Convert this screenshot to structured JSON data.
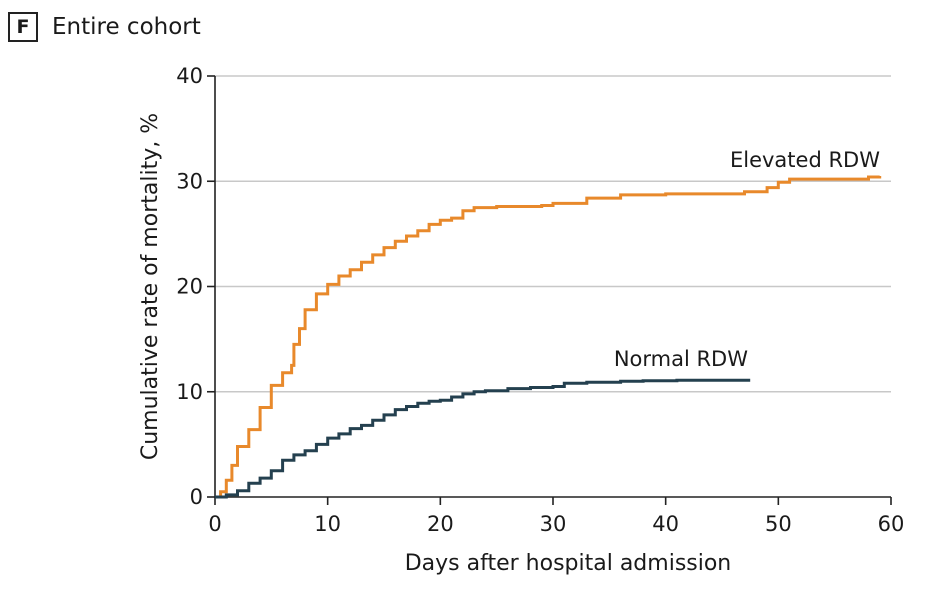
{
  "panel": {
    "letter": "F",
    "title": "Entire cohort"
  },
  "chart_data": {
    "type": "line",
    "title": "Entire cohort",
    "xlabel": "Days after hospital admission",
    "ylabel": "Cumulative rate of mortality, %",
    "xlim": [
      0,
      60
    ],
    "ylim": [
      0,
      40
    ],
    "xticks": [
      0,
      10,
      20,
      30,
      40,
      50,
      60
    ],
    "yticks": [
      0,
      10,
      20,
      30,
      40
    ],
    "grid": "horizontal",
    "step": true,
    "series": [
      {
        "name": "Elevated RDW",
        "color": "#E8892B",
        "points": [
          [
            0,
            0
          ],
          [
            0.5,
            0.5
          ],
          [
            1,
            1.6
          ],
          [
            1.5,
            3
          ],
          [
            2,
            4.8
          ],
          [
            3,
            6.4
          ],
          [
            4,
            8.5
          ],
          [
            5,
            10.6
          ],
          [
            6,
            11.8
          ],
          [
            6.8,
            12.5
          ],
          [
            7,
            14.5
          ],
          [
            7.5,
            16
          ],
          [
            8,
            17.8
          ],
          [
            9,
            19.3
          ],
          [
            10,
            20.2
          ],
          [
            11,
            21
          ],
          [
            12,
            21.6
          ],
          [
            13,
            22.3
          ],
          [
            14,
            23
          ],
          [
            15,
            23.7
          ],
          [
            16,
            24.3
          ],
          [
            17,
            24.8
          ],
          [
            18,
            25.3
          ],
          [
            19,
            25.9
          ],
          [
            20,
            26.3
          ],
          [
            21,
            26.5
          ],
          [
            22,
            27.2
          ],
          [
            23,
            27.5
          ],
          [
            25,
            27.6
          ],
          [
            27,
            27.6
          ],
          [
            29,
            27.7
          ],
          [
            30,
            27.9
          ],
          [
            33,
            28.4
          ],
          [
            36,
            28.7
          ],
          [
            40,
            28.8
          ],
          [
            44,
            28.8
          ],
          [
            47,
            29
          ],
          [
            49,
            29.4
          ],
          [
            50,
            29.9
          ],
          [
            51,
            30.2
          ],
          [
            55,
            30.2
          ],
          [
            58,
            30.4
          ],
          [
            59,
            30.5
          ]
        ]
      },
      {
        "name": "Normal RDW",
        "color": "#24404F",
        "points": [
          [
            0,
            0
          ],
          [
            1,
            0.2
          ],
          [
            2,
            0.6
          ],
          [
            3,
            1.3
          ],
          [
            4,
            1.8
          ],
          [
            5,
            2.5
          ],
          [
            6,
            3.5
          ],
          [
            7,
            4
          ],
          [
            8,
            4.4
          ],
          [
            9,
            5
          ],
          [
            10,
            5.6
          ],
          [
            11,
            6
          ],
          [
            12,
            6.5
          ],
          [
            13,
            6.8
          ],
          [
            14,
            7.3
          ],
          [
            15,
            7.8
          ],
          [
            16,
            8.3
          ],
          [
            17,
            8.6
          ],
          [
            18,
            8.9
          ],
          [
            19,
            9.1
          ],
          [
            20,
            9.2
          ],
          [
            21,
            9.5
          ],
          [
            22,
            9.8
          ],
          [
            23,
            10
          ],
          [
            24,
            10.1
          ],
          [
            26,
            10.3
          ],
          [
            28,
            10.4
          ],
          [
            30,
            10.5
          ],
          [
            31,
            10.8
          ],
          [
            33,
            10.9
          ],
          [
            36,
            11
          ],
          [
            38,
            11.05
          ],
          [
            41,
            11.1
          ],
          [
            47.5,
            11.1
          ]
        ]
      }
    ]
  }
}
